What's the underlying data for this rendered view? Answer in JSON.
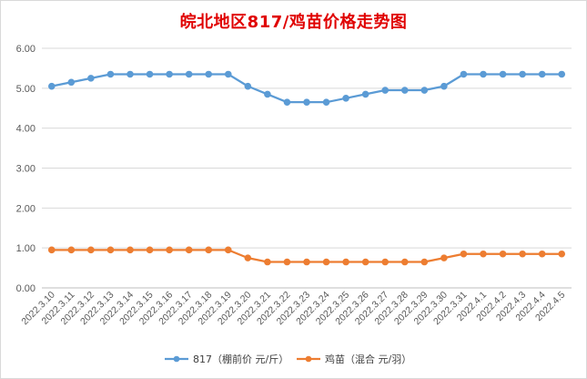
{
  "title": "皖北地区817/鸡苗价格走势图",
  "chart_data": {
    "type": "line",
    "title": "皖北地区817/鸡苗价格走势图",
    "xlabel": "",
    "ylabel": "",
    "ylim": [
      0,
      6
    ],
    "yticks": [
      "0.00",
      "1.00",
      "2.00",
      "3.00",
      "4.00",
      "5.00",
      "6.00"
    ],
    "grid": "horizontal",
    "legend_position": "bottom",
    "categories": [
      "2022.3.10",
      "2022.3.11",
      "2022.3.12",
      "2022.3.13",
      "2022.3.14",
      "2022.3.15",
      "2022.3.16",
      "2022.3.17",
      "2022.3.18",
      "2022.3.19",
      "2022.3.20",
      "2022.3.21",
      "2022.3.22",
      "2022.3.23",
      "2022.3.24",
      "2022.3.25",
      "2022.3.26",
      "2022.3.27",
      "2022.3.28",
      "2022.3.29",
      "2022.3.30",
      "2022.3.31",
      "2022.4.1",
      "2022.4.2",
      "2022.4.3",
      "2022.4.4",
      "2022.4.5"
    ],
    "series": [
      {
        "name": "817（棚前价 元/斤）",
        "color": "#5b9bd5",
        "values": [
          5.05,
          5.15,
          5.25,
          5.35,
          5.35,
          5.35,
          5.35,
          5.35,
          5.35,
          5.35,
          5.05,
          4.85,
          4.65,
          4.65,
          4.65,
          4.75,
          4.85,
          4.95,
          4.95,
          4.95,
          5.05,
          5.35,
          5.35,
          5.35,
          5.35,
          5.35,
          5.35
        ]
      },
      {
        "name": "鸡苗（混合 元/羽）",
        "color": "#ed7d31",
        "values": [
          0.95,
          0.95,
          0.95,
          0.95,
          0.95,
          0.95,
          0.95,
          0.95,
          0.95,
          0.95,
          0.75,
          0.65,
          0.65,
          0.65,
          0.65,
          0.65,
          0.65,
          0.65,
          0.65,
          0.65,
          0.75,
          0.85,
          0.85,
          0.85,
          0.85,
          0.85,
          0.85
        ]
      }
    ]
  }
}
